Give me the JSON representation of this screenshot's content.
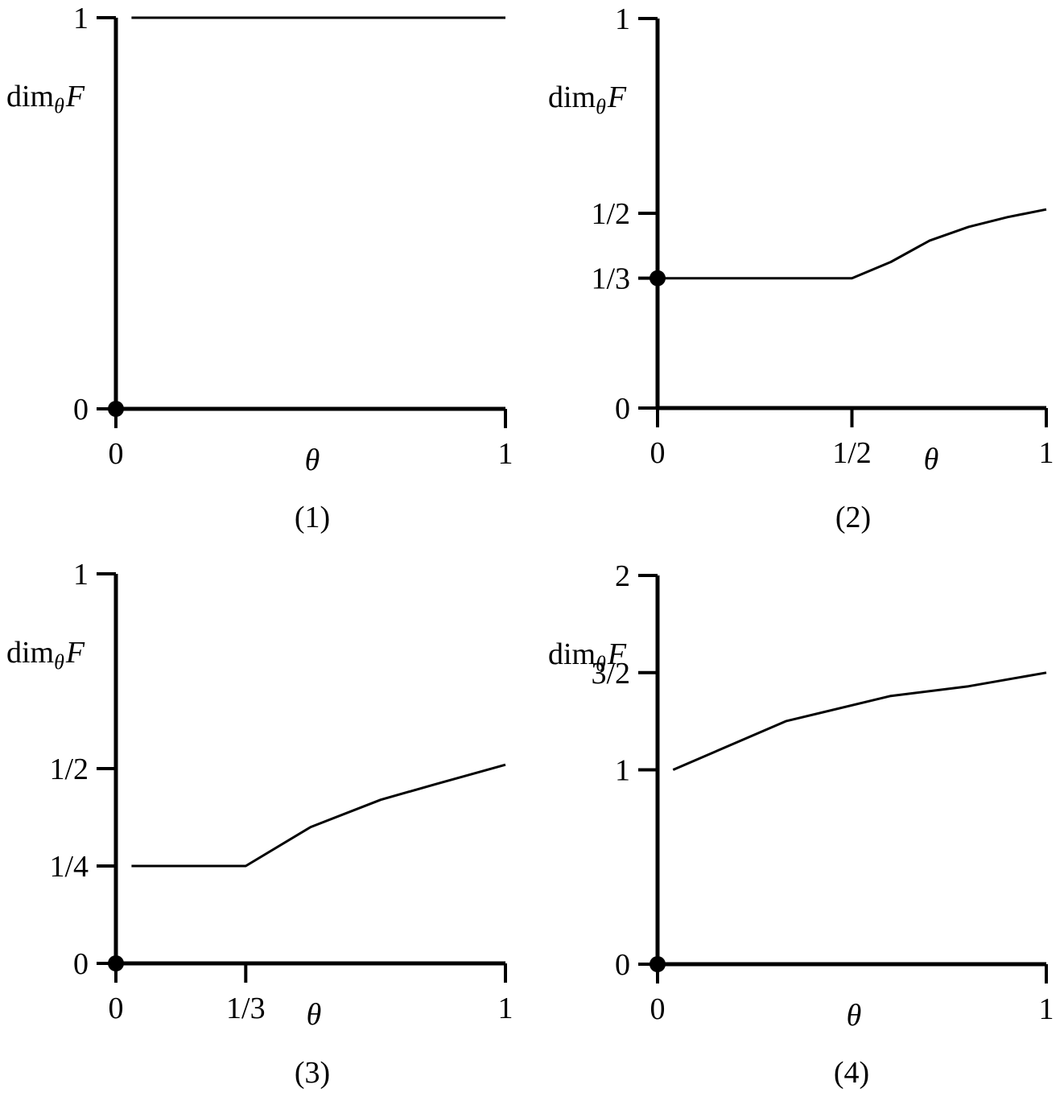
{
  "chart_data": [
    {
      "type": "line",
      "caption": "(1)",
      "ylabel": "dim",
      "ylabel_sub": "θ",
      "ylabel_var": "F",
      "xlabel": "θ",
      "xlim": [
        0,
        1
      ],
      "ylim": [
        0,
        1
      ],
      "xticks": [
        {
          "v": 0,
          "label": "0"
        },
        {
          "v": 1,
          "label": "1"
        }
      ],
      "yticks": [
        {
          "v": 0,
          "label": "0"
        },
        {
          "v": 1,
          "label": "1"
        }
      ],
      "series": [
        {
          "points": [
            [
              0.04,
              1.0
            ],
            [
              1.0,
              1.0
            ]
          ]
        }
      ],
      "markers": [
        [
          0,
          0
        ]
      ]
    },
    {
      "type": "line",
      "caption": "(2)",
      "ylabel": "dim",
      "ylabel_sub": "θ",
      "ylabel_var": "F",
      "xlabel": "θ",
      "xlim": [
        0,
        1
      ],
      "ylim": [
        0,
        1
      ],
      "xticks": [
        {
          "v": 0,
          "label": "0"
        },
        {
          "v": 0.5,
          "label": "1/2"
        },
        {
          "v": 1,
          "label": "1"
        }
      ],
      "yticks": [
        {
          "v": 0,
          "label": "0"
        },
        {
          "v": 0.3333,
          "label": "1/3"
        },
        {
          "v": 0.5,
          "label": "1/2"
        },
        {
          "v": 1,
          "label": "1"
        }
      ],
      "series": [
        {
          "points": [
            [
              0,
              0.3333
            ],
            [
              0.5,
              0.3333
            ],
            [
              0.6,
              0.375
            ],
            [
              0.7,
              0.43
            ],
            [
              0.8,
              0.465
            ],
            [
              0.9,
              0.49
            ],
            [
              1.0,
              0.51
            ]
          ]
        }
      ],
      "markers": [
        [
          0,
          0.3333
        ]
      ]
    },
    {
      "type": "line",
      "caption": "(3)",
      "ylabel": "dim",
      "ylabel_sub": "θ",
      "ylabel_var": "F",
      "xlabel": "θ",
      "xlim": [
        0,
        1
      ],
      "ylim": [
        0,
        1
      ],
      "xticks": [
        {
          "v": 0,
          "label": "0"
        },
        {
          "v": 0.3333,
          "label": "1/3"
        },
        {
          "v": 1,
          "label": "1"
        }
      ],
      "yticks": [
        {
          "v": 0,
          "label": "0"
        },
        {
          "v": 0.25,
          "label": "1/4"
        },
        {
          "v": 0.5,
          "label": "1/2"
        },
        {
          "v": 1,
          "label": "1"
        }
      ],
      "series": [
        {
          "points": [
            [
              0.04,
              0.25
            ],
            [
              0.3333,
              0.25
            ],
            [
              0.5,
              0.35
            ],
            [
              0.68,
              0.42
            ],
            [
              0.82,
              0.46
            ],
            [
              1.0,
              0.51
            ]
          ]
        }
      ],
      "markers": [
        [
          0,
          0
        ]
      ]
    },
    {
      "type": "line",
      "caption": "(4)",
      "ylabel": "dim",
      "ylabel_sub": "θ",
      "ylabel_var": "F",
      "xlabel": "θ",
      "xlim": [
        0,
        1
      ],
      "ylim": [
        0,
        2
      ],
      "xticks": [
        {
          "v": 0,
          "label": "0"
        },
        {
          "v": 1,
          "label": "1"
        }
      ],
      "yticks": [
        {
          "v": 0,
          "label": "0"
        },
        {
          "v": 1,
          "label": "1"
        },
        {
          "v": 1.5,
          "label": "3/2"
        },
        {
          "v": 2,
          "label": "2"
        }
      ],
      "series": [
        {
          "points": [
            [
              0.04,
              1.0
            ],
            [
              0.33,
              1.25
            ],
            [
              0.6,
              1.38
            ],
            [
              0.8,
              1.43
            ],
            [
              1.0,
              1.5
            ]
          ]
        }
      ],
      "markers": [
        [
          0,
          0
        ]
      ]
    }
  ]
}
